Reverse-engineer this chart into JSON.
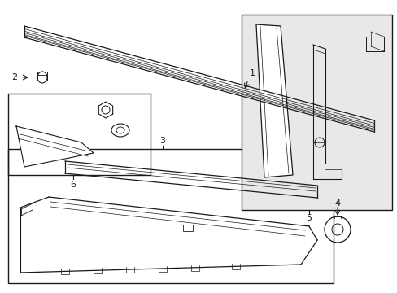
{
  "bg_color": "#ffffff",
  "line_color": "#1a1a1a",
  "gray_bg": "#e8e8e8",
  "fig_w": 4.89,
  "fig_h": 3.6,
  "dpi": 100
}
